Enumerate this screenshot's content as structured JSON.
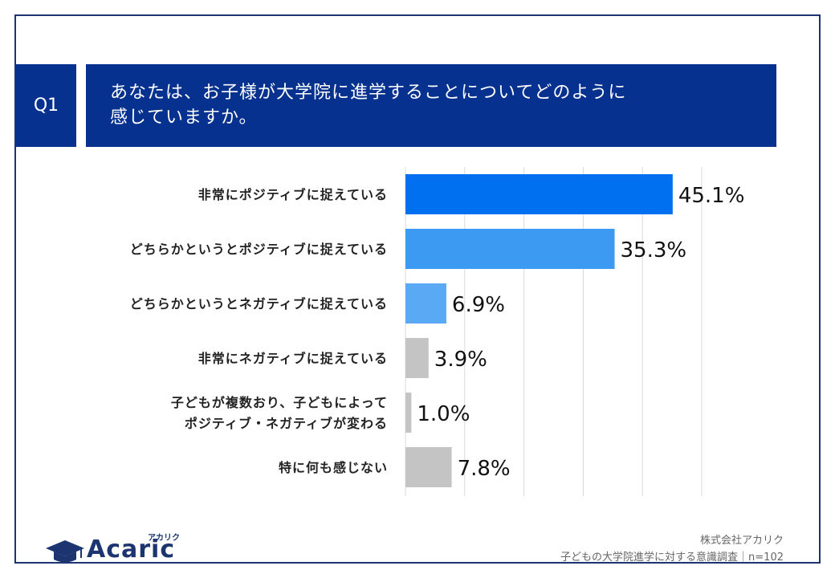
{
  "question": {
    "number": "Q1",
    "title_line1": "あなたは、お子様が大学院に進学することについてどのように",
    "title_line2": "感じていますか。"
  },
  "chart_data": {
    "type": "bar",
    "orientation": "horizontal",
    "categories": [
      [
        "非常にポジティブに捉えている"
      ],
      [
        "どちらかというとポジティブに捉えている"
      ],
      [
        "どちらかというとネガティブに捉えている"
      ],
      [
        "非常にネガティブに捉えている"
      ],
      [
        "子どもが複数おり、子どもによって",
        "ポジティブ・ネガティブが変わる"
      ],
      [
        "特に何も感じない"
      ]
    ],
    "values": [
      45.1,
      35.3,
      6.9,
      3.9,
      1.0,
      7.8
    ],
    "value_labels": [
      "45.1%",
      "35.3%",
      "6.9%",
      "3.9%",
      "1.0%",
      "7.8%"
    ],
    "colors": [
      "#0070f0",
      "#3d9af2",
      "#5aa9f5",
      "#c4c4c4",
      "#c4c4c4",
      "#c4c4c4"
    ],
    "xlim": [
      0,
      50
    ],
    "grid": true
  },
  "footer": {
    "logo_text": "Acaric",
    "logo_kana": "アカリク",
    "source_line1": "株式会社アカリク",
    "source_line2": "子どもの大学院進学に対する意識調査｜n=102"
  },
  "colors": {
    "header_bg": "#06318f",
    "frame_border": "#1c3570"
  }
}
